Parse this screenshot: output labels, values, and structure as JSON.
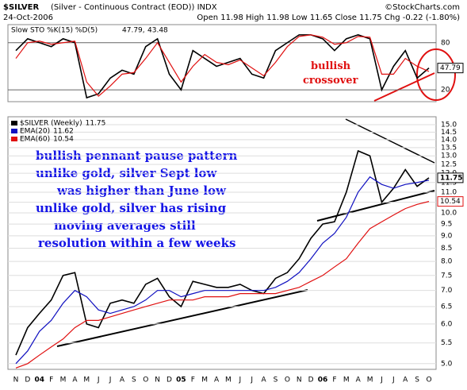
{
  "header": {
    "symbol": "$SILVER",
    "description": "(Silver - Continuous Contract (EOD)) INDX",
    "date": "24-Oct-2006",
    "quote": "Open 11.98 High 11.98 Low 11.65 Close 11.75 Chg -0.22 (-1.80%)",
    "credit": "©StockCharts.com"
  },
  "annotations": [
    "bullish pennant pause pattern",
    "unlike gold, silver Sept low",
    "was higher than June low",
    "unlike gold, silver has rising",
    "moving averages still",
    "resolution within a few weeks",
    "bullish",
    "crossover"
  ],
  "categories": [
    "N",
    "D",
    "04",
    "F",
    "M",
    "A",
    "M",
    "J",
    "J",
    "A",
    "S",
    "O",
    "N",
    "D",
    "05",
    "F",
    "M",
    "A",
    "M",
    "J",
    "J",
    "A",
    "S",
    "O",
    "N",
    "D",
    "06",
    "F",
    "M",
    "A",
    "M",
    "J",
    "J",
    "A",
    "S",
    "O"
  ],
  "chart_data": [
    {
      "type": "line",
      "title": "Slow STO %K(15) %D(5)",
      "ylim": [
        5,
        103
      ],
      "yticks": [
        20,
        80
      ],
      "series": [
        {
          "name": "%K",
          "label": "47.79,",
          "color": "#000000",
          "values": [
            70,
            85,
            80,
            75,
            85,
            80,
            10,
            15,
            35,
            45,
            40,
            75,
            85,
            40,
            20,
            70,
            60,
            50,
            55,
            60,
            40,
            35,
            70,
            80,
            90,
            90,
            85,
            70,
            85,
            90,
            85,
            20,
            50,
            70,
            35,
            47.79
          ]
        },
        {
          "name": "%D",
          "label": "43.48",
          "color": "#e01010",
          "values": [
            60,
            80,
            82,
            78,
            80,
            82,
            30,
            12,
            25,
            40,
            42,
            60,
            80,
            55,
            30,
            50,
            65,
            55,
            52,
            58,
            48,
            38,
            55,
            75,
            88,
            90,
            87,
            78,
            80,
            88,
            87,
            40,
            40,
            60,
            50,
            43.48
          ]
        }
      ]
    },
    {
      "type": "line",
      "log": true,
      "ylim": [
        4.87,
        15.56
      ],
      "yticks": [
        {
          "value": 5,
          "label": "5.0"
        },
        5.5,
        {
          "value": 6,
          "label": "6.0"
        },
        6.5,
        {
          "value": 7,
          "label": "7.0"
        },
        7.5,
        {
          "value": 8,
          "label": "8.0"
        },
        8.5,
        {
          "value": 9,
          "label": "9.0"
        },
        9.5,
        {
          "value": 10,
          "label": "10.0"
        },
        10.5,
        {
          "value": 11,
          "label": "11.0"
        },
        11.5,
        {
          "value": 12,
          "label": "12.0"
        },
        12.5,
        {
          "value": 13,
          "label": "13.0"
        },
        13.5,
        {
          "value": 14,
          "label": "14.0"
        },
        14.5,
        {
          "value": 15,
          "label": "15.0"
        }
      ],
      "series": [
        {
          "name": "$SILVER (Weekly)",
          "color": "#000000",
          "values": [
            5.2,
            5.9,
            6.3,
            6.7,
            7.5,
            7.6,
            6.0,
            5.9,
            6.6,
            6.7,
            6.6,
            7.2,
            7.4,
            6.8,
            6.5,
            7.3,
            7.2,
            7.1,
            7.1,
            7.2,
            7.0,
            6.9,
            7.4,
            7.6,
            8.1,
            8.9,
            9.5,
            9.6,
            11.0,
            13.3,
            13.0,
            10.5,
            11.2,
            12.2,
            11.3,
            11.75
          ]
        },
        {
          "name": "EMA(20)",
          "color": "#1010c0",
          "values": [
            5.0,
            5.3,
            5.8,
            6.1,
            6.6,
            7.0,
            6.8,
            6.4,
            6.3,
            6.4,
            6.5,
            6.7,
            7.0,
            7.0,
            6.8,
            6.9,
            7.0,
            7.0,
            7.0,
            7.0,
            7.0,
            7.0,
            7.1,
            7.3,
            7.6,
            8.1,
            8.7,
            9.1,
            9.8,
            11.0,
            11.8,
            11.4,
            11.2,
            11.4,
            11.5,
            11.62
          ]
        },
        {
          "name": "EMA(60)",
          "color": "#e01010",
          "values": [
            4.9,
            5.0,
            5.2,
            5.4,
            5.6,
            5.9,
            6.1,
            6.1,
            6.2,
            6.3,
            6.4,
            6.5,
            6.6,
            6.7,
            6.7,
            6.7,
            6.8,
            6.8,
            6.8,
            6.9,
            6.9,
            6.9,
            6.9,
            7.0,
            7.1,
            7.3,
            7.5,
            7.8,
            8.1,
            8.7,
            9.3,
            9.6,
            9.9,
            10.2,
            10.4,
            10.54
          ]
        }
      ]
    }
  ]
}
